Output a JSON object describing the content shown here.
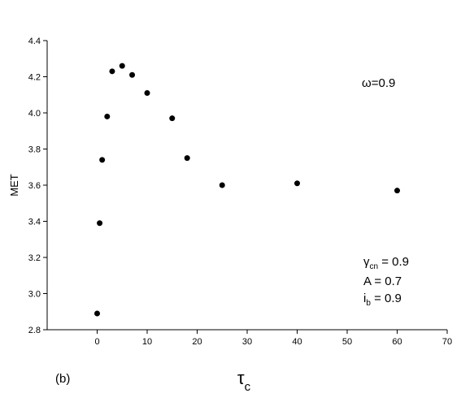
{
  "chart_data": {
    "type": "scatter",
    "title": "",
    "xlabel": "τ",
    "xlabel_sub": "c",
    "ylabel": "MET",
    "xlim": [
      -10,
      70
    ],
    "ylim": [
      2.8,
      4.4
    ],
    "xticks": [
      0,
      10,
      20,
      30,
      40,
      50,
      60,
      70
    ],
    "xtick_labels": [
      "0",
      "10",
      "20",
      "30",
      "40",
      "50",
      "60",
      "70"
    ],
    "yticks": [
      2.8,
      3.0,
      3.2,
      3.4,
      3.6,
      3.8,
      4.0,
      4.2,
      4.4
    ],
    "ytick_labels": [
      "2.8",
      "3.0",
      "3.2",
      "3.4",
      "3.6",
      "3.8",
      "4.0",
      "4.2",
      "4.4"
    ],
    "grid": false,
    "legend": "none",
    "series": [
      {
        "x": [
          0,
          0.5,
          1,
          2,
          3,
          5,
          7,
          10,
          15,
          18,
          25,
          40,
          60
        ],
        "y": [
          2.89,
          3.39,
          3.74,
          3.98,
          4.23,
          4.26,
          4.21,
          4.11,
          3.97,
          3.75,
          3.6,
          3.61,
          3.57
        ]
      }
    ],
    "annotations": {
      "omega": "ω=0.9",
      "gamma_sym": "γ",
      "gamma_sub": "cn",
      "gamma_val": " = 0.9",
      "a_line": "A = 0.7",
      "i_sym": "i",
      "i_sub": "b",
      "i_val": " = 0.9",
      "panel_label": "(b)"
    },
    "marker_color": "#000000",
    "axis_color": "#000000"
  }
}
